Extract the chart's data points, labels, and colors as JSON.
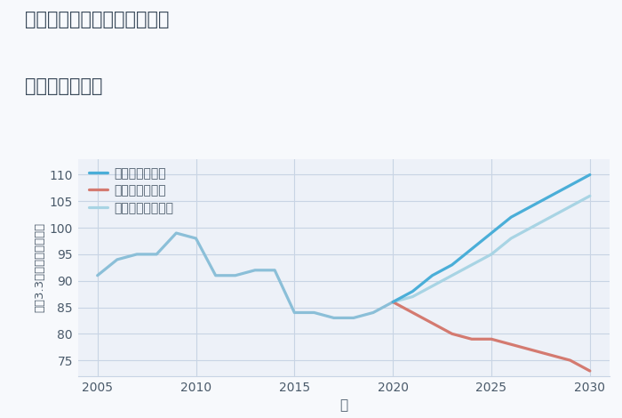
{
  "title_line1": "神奈川県横浜市南区共進町の",
  "title_line2": "土地の価格推移",
  "xlabel": "年",
  "ylabel": "坪（3.3㎡）単価（万円）",
  "xlim": [
    2004,
    2031
  ],
  "ylim": [
    72,
    113
  ],
  "yticks": [
    75,
    80,
    85,
    90,
    95,
    100,
    105,
    110
  ],
  "xticks": [
    2005,
    2010,
    2015,
    2020,
    2025,
    2030
  ],
  "bg_color": "#f7f9fc",
  "plot_bg_color": "#edf1f8",
  "grid_color": "#c8d4e4",
  "historical_years": [
    2005,
    2006,
    2007,
    2008,
    2009,
    2010,
    2011,
    2012,
    2013,
    2014,
    2015,
    2016,
    2017,
    2018,
    2019,
    2020
  ],
  "historical_values": [
    91,
    94,
    95,
    95,
    99,
    98,
    91,
    91,
    92,
    92,
    84,
    84,
    83,
    83,
    84,
    86
  ],
  "good_years": [
    2020,
    2021,
    2022,
    2023,
    2024,
    2025,
    2026,
    2027,
    2028,
    2029,
    2030
  ],
  "good_values": [
    86,
    88,
    91,
    93,
    96,
    99,
    102,
    104,
    106,
    108,
    110
  ],
  "bad_years": [
    2020,
    2021,
    2022,
    2023,
    2024,
    2025,
    2026,
    2027,
    2028,
    2029,
    2030
  ],
  "bad_values": [
    86,
    84,
    82,
    80,
    79,
    79,
    78,
    77,
    76,
    75,
    73
  ],
  "normal_years": [
    2020,
    2021,
    2022,
    2023,
    2024,
    2025,
    2026,
    2027,
    2028,
    2029,
    2030
  ],
  "normal_values": [
    86,
    87,
    89,
    91,
    93,
    95,
    98,
    100,
    102,
    104,
    106
  ],
  "color_historical": "#8bbfd8",
  "color_good": "#4aaed8",
  "color_bad": "#d47a70",
  "color_normal": "#a8d4e4",
  "legend_good": "グッドシナリオ",
  "legend_bad": "バッドシナリオ",
  "legend_normal": "ノーマルシナリオ",
  "line_width": 2.3,
  "title_color": "#3a4a5a",
  "axis_color": "#4a5a6a",
  "tick_color": "#4a5a6a",
  "title_fontsize": 15,
  "tick_fontsize": 10,
  "legend_fontsize": 10,
  "xlabel_fontsize": 11,
  "ylabel_fontsize": 9.5
}
